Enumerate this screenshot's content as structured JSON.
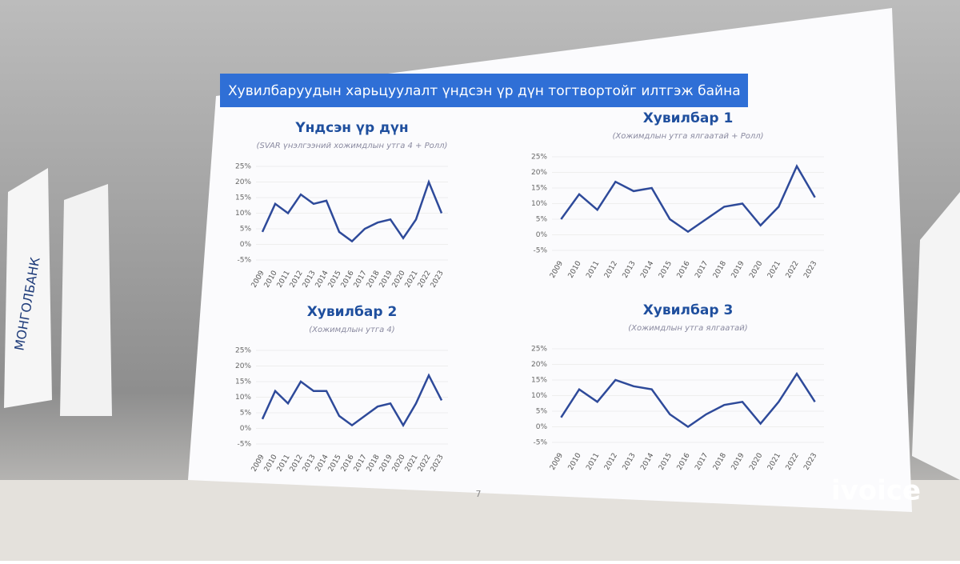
{
  "slide": {
    "title": "Хувилбаруудын харьцуулалт үндсэн үр дүн тогтвортойг илтгэж байна",
    "page_number": "7"
  },
  "banner": "МОНГОЛБАНК",
  "watermark": "ivoice",
  "chart_data": [
    {
      "type": "line",
      "title": "Үндсэн үр дүн",
      "subtitle": "(SVAR үнэлгээний хожимдлын утга 4 + Ролл)",
      "categories": [
        "2009",
        "2010",
        "2011",
        "2012",
        "2013",
        "2014",
        "2015",
        "2016",
        "2017",
        "2018",
        "2019",
        "2020",
        "2021",
        "2022",
        "2023"
      ],
      "values": [
        4,
        13,
        10,
        16,
        13,
        14,
        4,
        1,
        5,
        7,
        8,
        2,
        8,
        20,
        10
      ],
      "color": "#2e4a9a",
      "ylim": [
        -5,
        25
      ],
      "yticks": [
        {
          "value": -5,
          "label": "-5%"
        },
        {
          "value": 0,
          "label": "0%"
        },
        {
          "value": 5,
          "label": "5%"
        },
        {
          "value": 10,
          "label": "10%"
        },
        {
          "value": 15,
          "label": "15%"
        },
        {
          "value": 20,
          "label": "20%"
        },
        {
          "value": 25,
          "label": "25%"
        }
      ]
    },
    {
      "type": "line",
      "title": "Хувилбар 1",
      "subtitle": "(Хожимдлын утга ялгаатай + Ролл)",
      "categories": [
        "2009",
        "2010",
        "2011",
        "2012",
        "2013",
        "2014",
        "2015",
        "2016",
        "2017",
        "2018",
        "2019",
        "2020",
        "2021",
        "2022",
        "2023"
      ],
      "values": [
        5,
        13,
        8,
        17,
        14,
        15,
        5,
        1,
        5,
        9,
        10,
        3,
        9,
        22,
        12
      ],
      "color": "#2e4a9a",
      "ylim": [
        -5,
        25
      ],
      "yticks": [
        {
          "value": -5,
          "label": "-5%"
        },
        {
          "value": 0,
          "label": "0%"
        },
        {
          "value": 5,
          "label": "5%"
        },
        {
          "value": 10,
          "label": "10%"
        },
        {
          "value": 15,
          "label": "15%"
        },
        {
          "value": 20,
          "label": "20%"
        },
        {
          "value": 25,
          "label": "25%"
        }
      ]
    },
    {
      "type": "line",
      "title": "Хувилбар 2",
      "subtitle": "(Хожимдлын утга 4)",
      "categories": [
        "2009",
        "2010",
        "2011",
        "2012",
        "2013",
        "2014",
        "2015",
        "2016",
        "2017",
        "2018",
        "2019",
        "2020",
        "2021",
        "2022",
        "2023"
      ],
      "values": [
        3,
        12,
        8,
        15,
        12,
        12,
        4,
        1,
        4,
        7,
        8,
        1,
        8,
        17,
        9
      ],
      "color": "#2e4a9a",
      "ylim": [
        -5,
        25
      ],
      "yticks": [
        {
          "value": -5,
          "label": "-5%"
        },
        {
          "value": 0,
          "label": "0%"
        },
        {
          "value": 5,
          "label": "5%"
        },
        {
          "value": 10,
          "label": "10%"
        },
        {
          "value": 15,
          "label": "15%"
        },
        {
          "value": 20,
          "label": "20%"
        },
        {
          "value": 25,
          "label": "25%"
        }
      ]
    },
    {
      "type": "line",
      "title": "Хувилбар 3",
      "subtitle": "(Хожимдлын утга ялгаатай)",
      "categories": [
        "2009",
        "2010",
        "2011",
        "2012",
        "2013",
        "2014",
        "2015",
        "2016",
        "2017",
        "2018",
        "2019",
        "2020",
        "2021",
        "2022",
        "2023"
      ],
      "values": [
        3,
        12,
        8,
        15,
        13,
        12,
        4,
        0,
        4,
        7,
        8,
        1,
        8,
        17,
        8
      ],
      "color": "#2e4a9a",
      "ylim": [
        -5,
        25
      ],
      "yticks": [
        {
          "value": -5,
          "label": "-5%"
        },
        {
          "value": 0,
          "label": "0%"
        },
        {
          "value": 5,
          "label": "5%"
        },
        {
          "value": 10,
          "label": "10%"
        },
        {
          "value": 15,
          "label": "15%"
        },
        {
          "value": 20,
          "label": "20%"
        },
        {
          "value": 25,
          "label": "25%"
        }
      ]
    }
  ]
}
